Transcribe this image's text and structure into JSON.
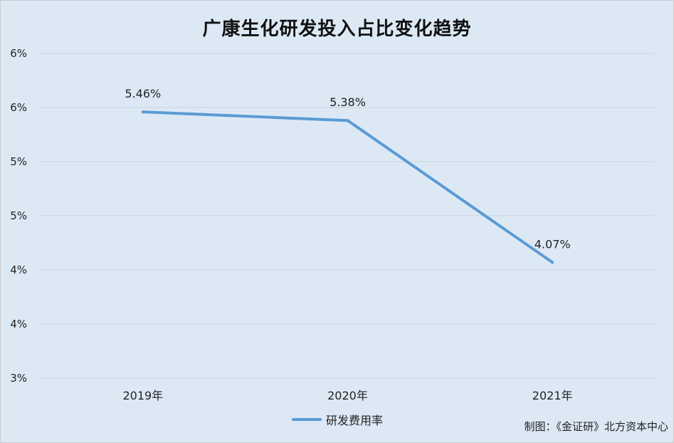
{
  "chart_data": {
    "type": "line",
    "title": "广康生化研发投入占比变化趋势",
    "categories": [
      "2019年",
      "2020年",
      "2021年"
    ],
    "series": [
      {
        "name": "研发费用率",
        "values": [
          5.46,
          5.38,
          4.07
        ],
        "labels": [
          "5.46%",
          "5.38%",
          "4.07%"
        ],
        "color": "#5b9bd5"
      }
    ],
    "ylim": [
      3,
      6
    ],
    "yticks": [
      3,
      3.5,
      4,
      4.5,
      5,
      5.5,
      6
    ],
    "ytick_labels": [
      "3%",
      "4%",
      "4%",
      "5%",
      "5%",
      "6%",
      "6%"
    ],
    "grid": true,
    "legend_position": "bottom"
  },
  "footer": {
    "credit": "制图：《金证研》北方资本中心"
  }
}
